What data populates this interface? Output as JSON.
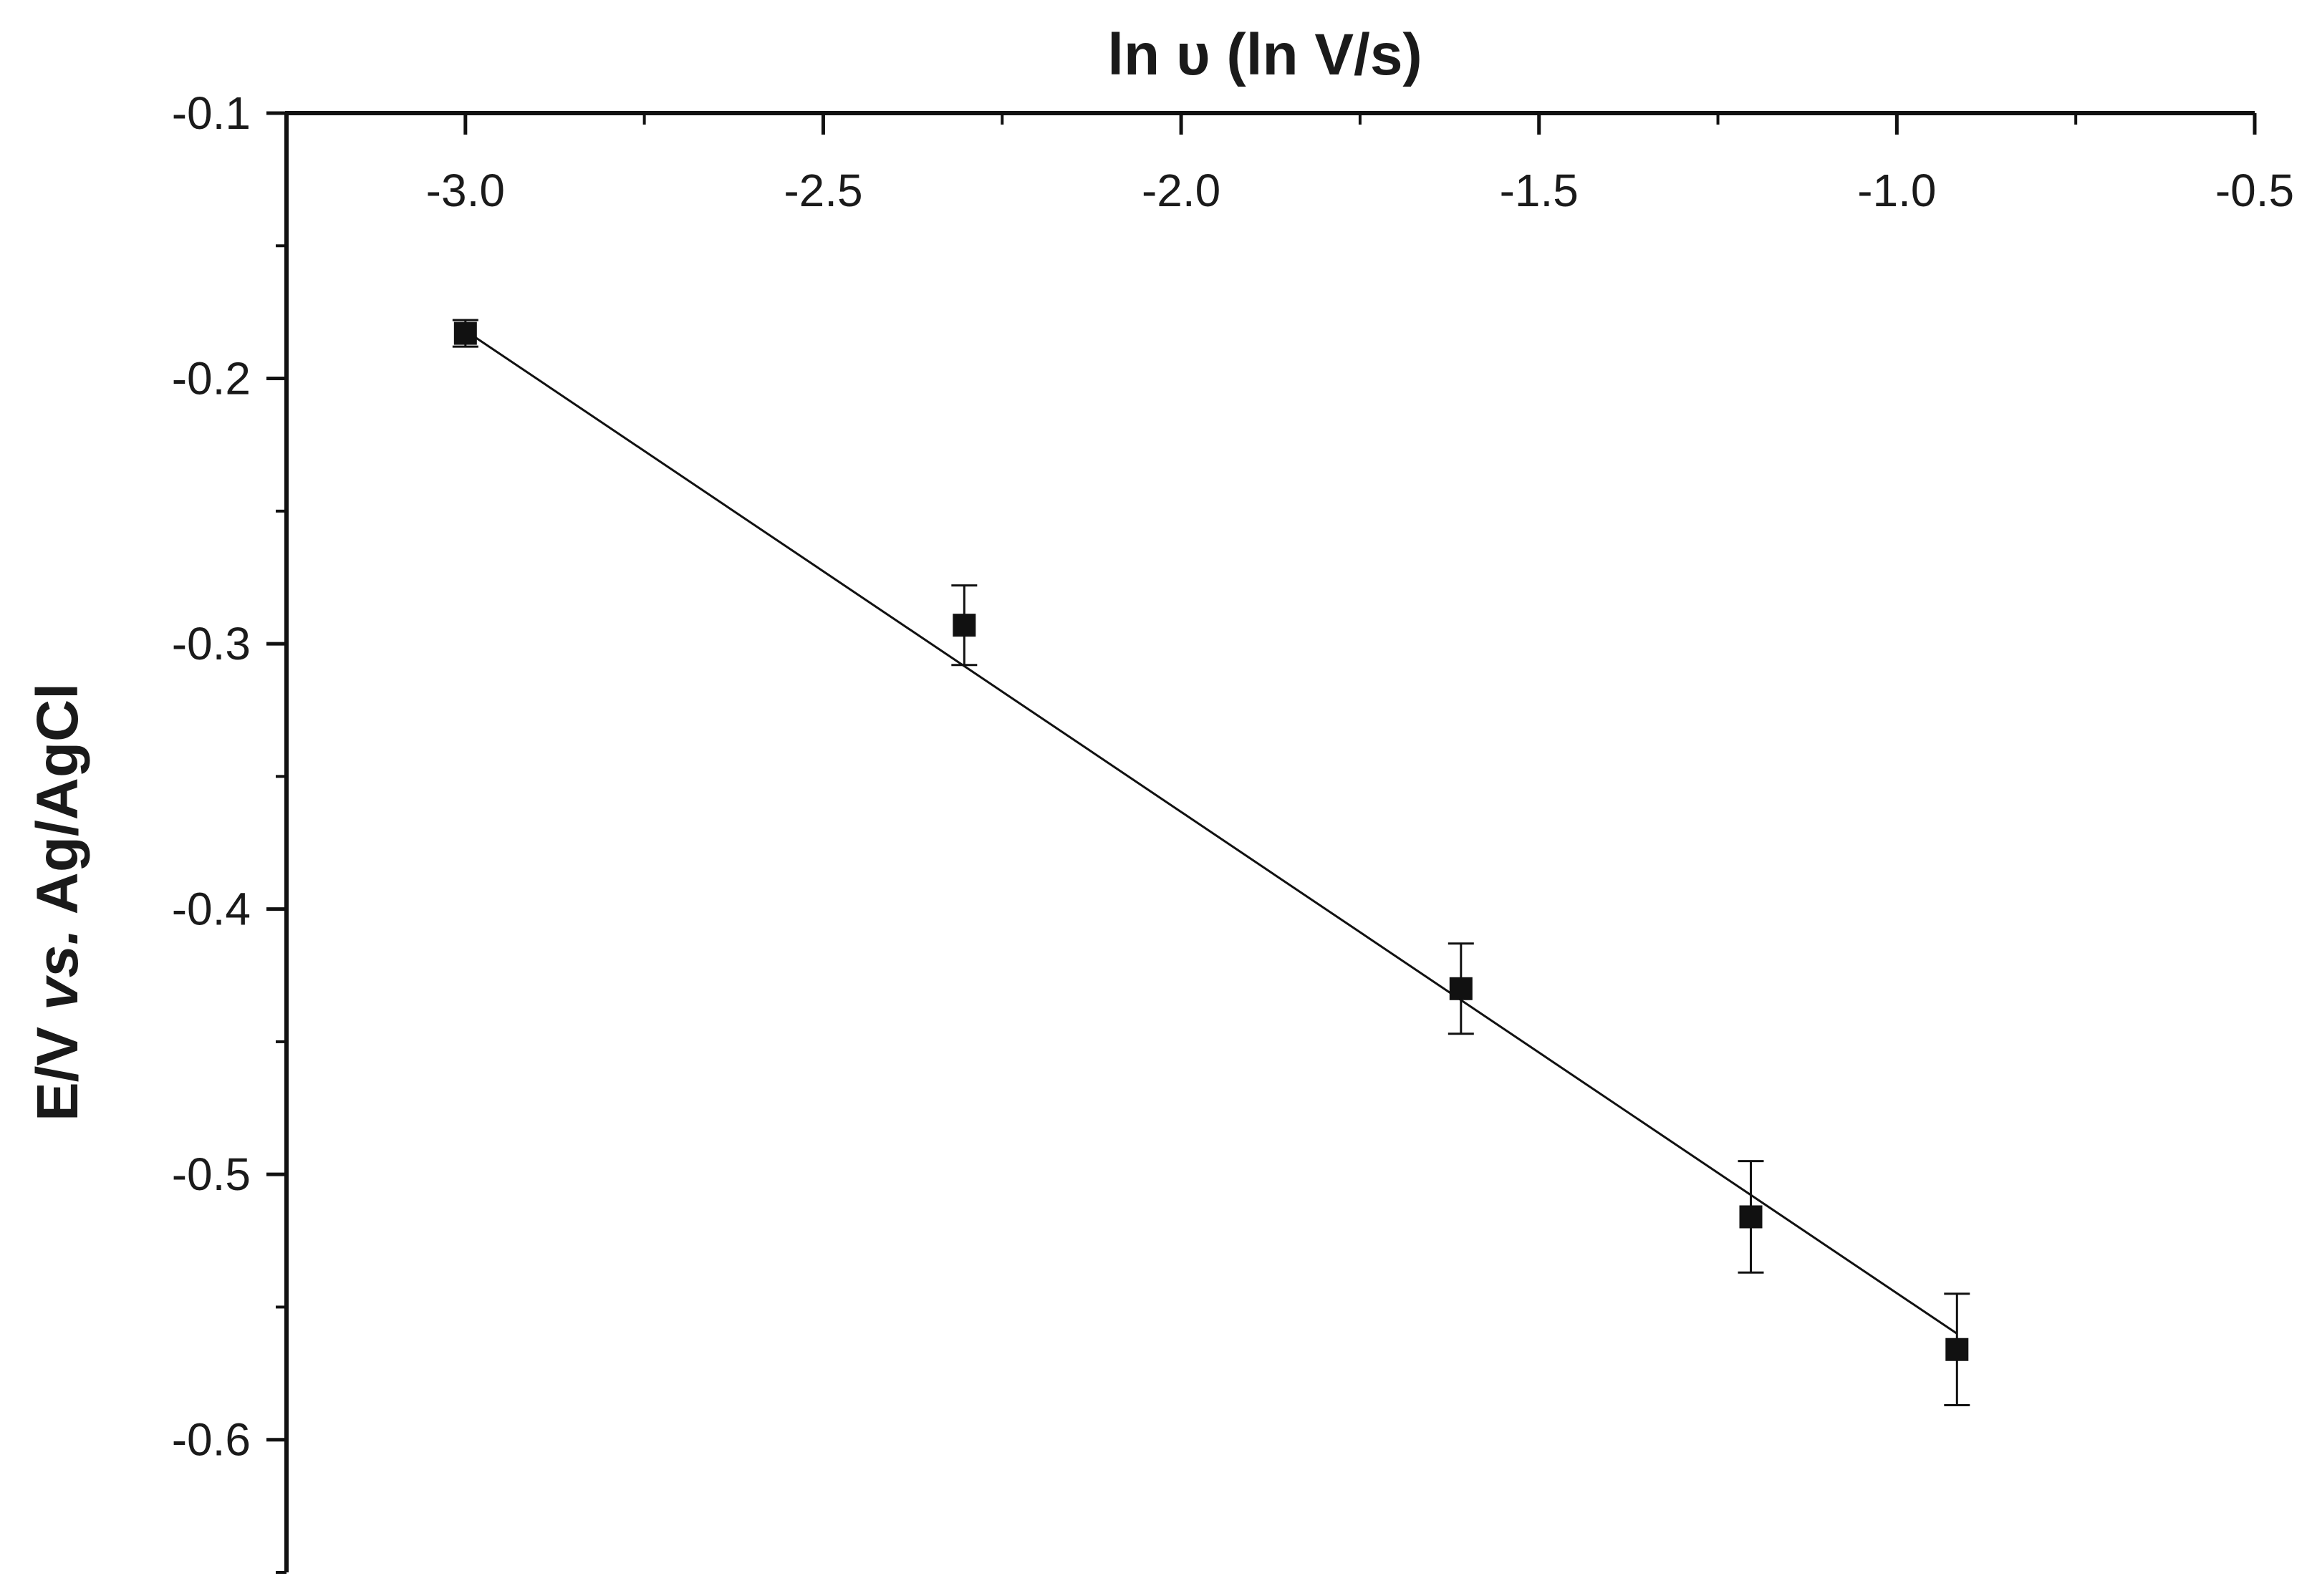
{
  "chart_data": {
    "type": "scatter",
    "title": "",
    "xlabel": "ln υ (ln V/s)",
    "ylabel_parts": [
      "E/V ",
      "vs.",
      " Ag/AgCl"
    ],
    "xlim": [
      -3.25,
      -0.5
    ],
    "ylim": [
      -0.65,
      -0.1
    ],
    "x_axis_position": "top",
    "x_ticks": [
      -3.0,
      -2.5,
      -2.0,
      -1.5,
      -1.0,
      -0.5
    ],
    "x_tick_labels": [
      "-3.0",
      "-2.5",
      "-2.0",
      "-1.5",
      "-1.0",
      "-0.5"
    ],
    "y_ticks": [
      -0.1,
      -0.2,
      -0.3,
      -0.4,
      -0.5,
      -0.6
    ],
    "y_tick_labels": [
      "-0.1",
      "-0.2",
      "-0.3",
      "-0.4",
      "-0.5",
      "-0.6"
    ],
    "grid": false,
    "legend": "none",
    "marker": "square",
    "color": "#111111",
    "points": [
      {
        "x": -3.0,
        "y": -0.183,
        "err": 0.005
      },
      {
        "x": -2.303,
        "y": -0.293,
        "err": 0.015
      },
      {
        "x": -1.609,
        "y": -0.43,
        "err": 0.017
      },
      {
        "x": -1.204,
        "y": -0.516,
        "err": 0.021
      },
      {
        "x": -0.916,
        "y": -0.566,
        "err": 0.021
      }
    ],
    "fit_line": {
      "x": [
        -3.0,
        -0.916
      ],
      "y": [
        -0.182,
        -0.56
      ]
    }
  }
}
